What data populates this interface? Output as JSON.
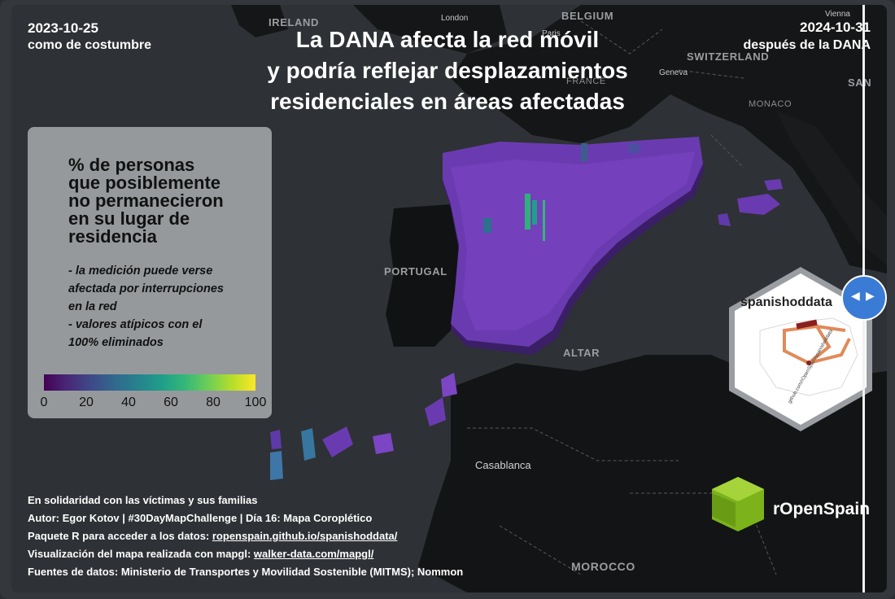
{
  "header": {
    "left_date": "2023-10-25",
    "left_label": "como de costumbre",
    "right_date": "2024-10-31",
    "right_label": "después de la DANA",
    "title_lines": [
      "La DANA afecta la red móvil",
      "y podría reflejar desplazamientos",
      "residenciales en áreas afectadas"
    ]
  },
  "places": {
    "ireland": "IRELAND",
    "london": "London",
    "belgium": "BELGIUM",
    "vienna": "Vienna",
    "paris": "Paris",
    "switzerland": "SWITZERLAND",
    "geneva": "Geneva",
    "france": "FRANCE",
    "san": "SAN",
    "monaco": "MONACO",
    "portugal": "PORTUGAL",
    "gibraltar": "ALTAR",
    "casablanca": "Casablanca",
    "morocco": "MOROCCO"
  },
  "legend": {
    "title_lines": [
      "% de personas",
      "que posiblemente",
      "no permanecieron",
      "en su lugar de",
      "residencia"
    ],
    "note_lines": [
      "- la medición puede verse",
      "afectada por interrupciones",
      "en la red",
      "- valores atípicos con el",
      "100% eliminados"
    ],
    "ticks": [
      "0",
      "20",
      "40",
      "60",
      "80",
      "100"
    ],
    "range": [
      0,
      100
    ],
    "palette": [
      "#440154",
      "#482878",
      "#3e4989",
      "#31688e",
      "#26828e",
      "#1f9e89",
      "#35b779",
      "#6ece58",
      "#b5de2b",
      "#fde725"
    ]
  },
  "credits": {
    "line1": "En solidaridad con las víctimas y sus familias",
    "line2": "Autor: Egor Kotov | #30DayMapChallenge | Día 16: Mapa Coroplético",
    "line3_prefix": "Paquete R para acceder a los datos: ",
    "line3_link": "ropenspain.github.io/spanishoddata/",
    "line4_prefix": "Visualización del mapa realizada con mapgl: ",
    "line4_link": "walker-data.com/mapgl/",
    "line5": "Fuentes de datos: Ministerio de Transportes y Movilidad Sostenible (MITMS); Nommon"
  },
  "badges": {
    "hex_name": "spanishoddata",
    "hex_url": "github.com/rOpenSpain/spanishoddata",
    "brand": "rOpenSpain"
  },
  "icons": {
    "slider": "compare-slider-icon",
    "logo": "ropenspain-cube-logo"
  }
}
